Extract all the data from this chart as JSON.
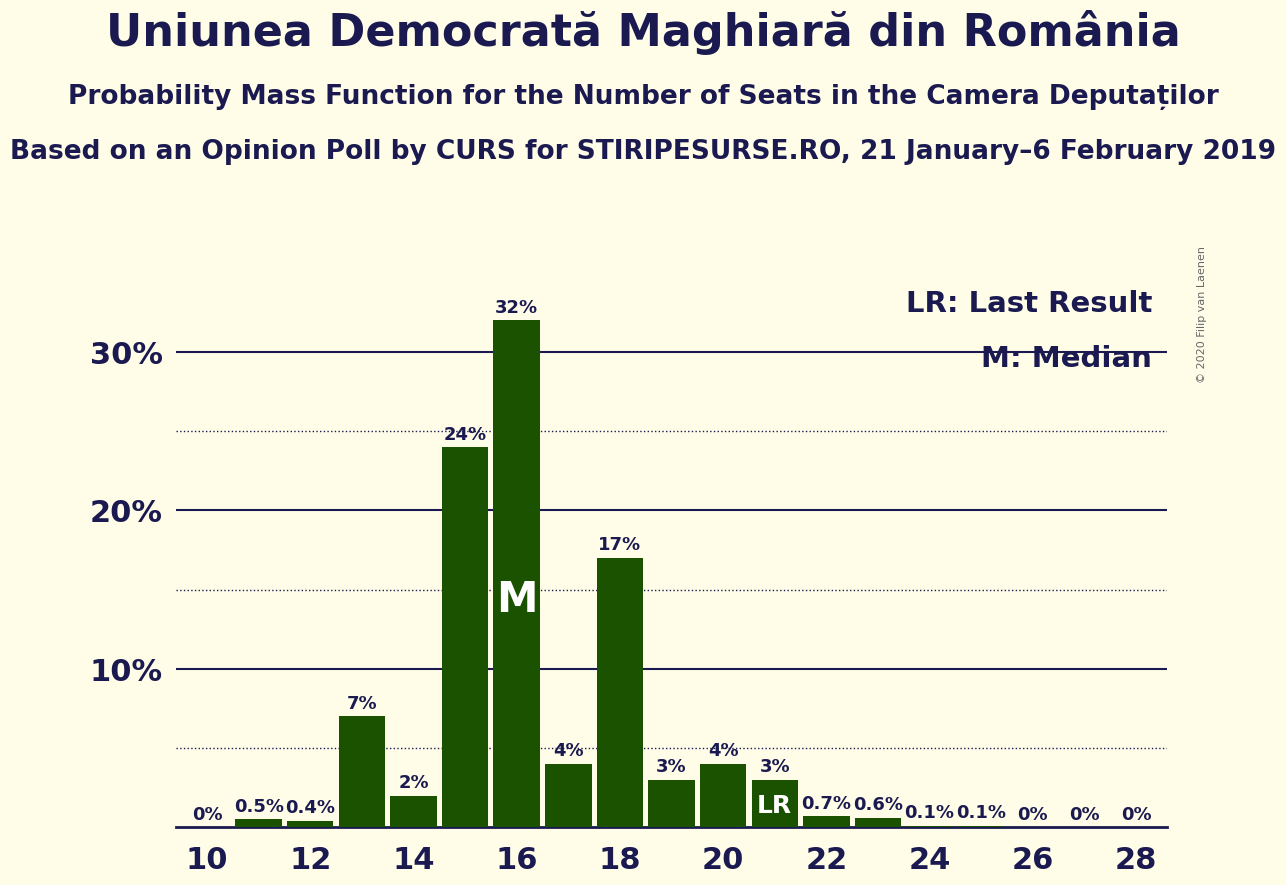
{
  "title": "Uniunea Democrată Maghiară din România",
  "subtitle1": "Probability Mass Function for the Number of Seats in the Camera Deputaților",
  "subtitle2": "Based on an Opinion Poll by CURS for STIRIPESURSE.RO, 21 January–6 February 2019",
  "copyright": "© 2020 Filip van Laenen",
  "legend_lr": "LR: Last Result",
  "legend_m": "M: Median",
  "seats": [
    10,
    11,
    12,
    13,
    14,
    15,
    16,
    17,
    18,
    19,
    20,
    21,
    22,
    23,
    24,
    25,
    26,
    27,
    28
  ],
  "values": [
    0.0,
    0.5,
    0.4,
    7.0,
    2.0,
    24.0,
    32.0,
    4.0,
    17.0,
    3.0,
    4.0,
    3.0,
    0.7,
    0.6,
    0.1,
    0.1,
    0.0,
    0.0,
    0.0
  ],
  "labels": [
    "0%",
    "0.5%",
    "0.4%",
    "7%",
    "2%",
    "24%",
    "32%",
    "4%",
    "17%",
    "3%",
    "4%",
    "3%",
    "0.7%",
    "0.6%",
    "0.1%",
    "0.1%",
    "0%",
    "0%",
    "0%"
  ],
  "bar_color": "#1a5200",
  "background_color": "#fffde8",
  "median_seat": 16,
  "lr_seat": 21,
  "ylim": [
    0,
    35
  ],
  "major_yticks": [
    10,
    20,
    30
  ],
  "major_ytick_labels": [
    "10%",
    "20%",
    "30%"
  ],
  "dotted_yticks": [
    5,
    15,
    25
  ],
  "title_fontsize": 32,
  "subtitle1_fontsize": 19,
  "subtitle2_fontsize": 19,
  "label_fontsize": 13,
  "tick_fontsize": 22,
  "legend_fontsize": 21,
  "text_color": "#1a1a50",
  "line_color": "#1a1a50"
}
